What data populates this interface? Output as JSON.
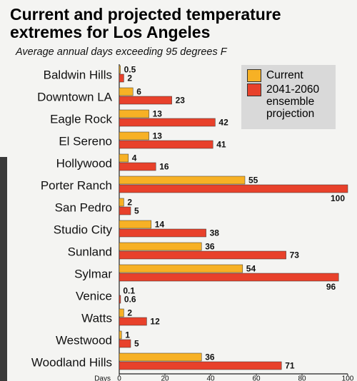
{
  "chart_data": {
    "type": "bar",
    "orientation": "horizontal",
    "title": "Current and projected temperature extremes for Los Angeles",
    "subtitle": "Average annual days exceeding 95 degrees F",
    "x_label": "Days",
    "categories": [
      "Baldwin Hills",
      "Downtown LA",
      "Eagle Rock",
      "El Sereno",
      "Hollywood",
      "Porter Ranch",
      "San Pedro",
      "Studio City",
      "Sunland",
      "Sylmar",
      "Venice",
      "Watts",
      "Westwood",
      "Woodland Hills"
    ],
    "series": [
      {
        "name": "Current",
        "color": "#f7b125",
        "values": [
          0.5,
          6,
          13,
          13,
          4,
          55,
          2,
          14,
          36,
          54,
          0.1,
          2,
          1,
          36
        ]
      },
      {
        "name": "2041-2060 ensemble projection",
        "color": "#e8412b",
        "values": [
          2,
          23,
          42,
          41,
          16,
          100,
          5,
          38,
          73,
          96,
          0.6,
          12,
          5,
          71
        ]
      }
    ],
    "xlim": [
      0,
      100
    ],
    "xticks": [
      0,
      20,
      40,
      60,
      80,
      100
    ],
    "legend": "upper right"
  }
}
